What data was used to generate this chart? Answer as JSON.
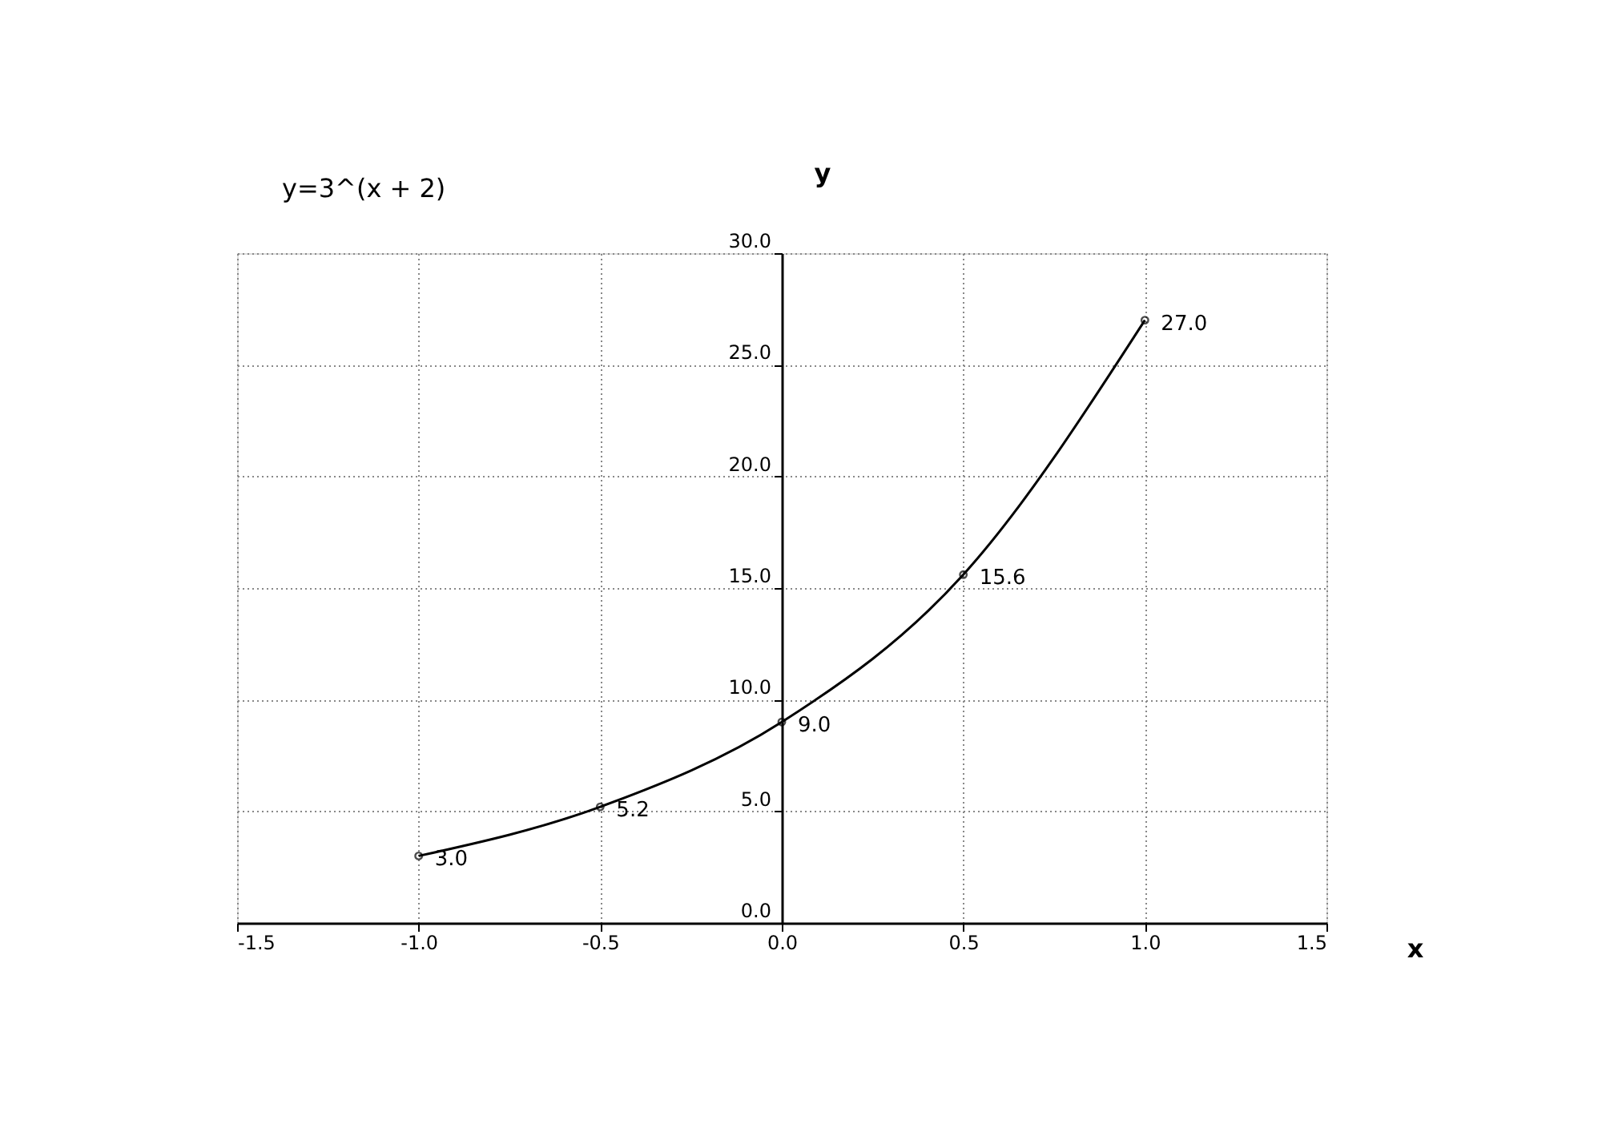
{
  "chart_data": {
    "type": "line",
    "title": "y=3^(x + 2)",
    "xlabel": "x",
    "ylabel": "y",
    "x": [
      -1.0,
      -0.5,
      0.0,
      0.5,
      1.0
    ],
    "series": [
      {
        "color": "#000000",
        "values": [
          3.0,
          5.2,
          9.0,
          15.6,
          27.0
        ],
        "value_labels": [
          "3.0",
          "5.2",
          "9.0",
          "15.6",
          "27.0"
        ]
      }
    ],
    "marker": "circle",
    "line_style": "solid",
    "grid": true,
    "xlim": [
      -1.5,
      1.5
    ],
    "xticks": [
      {
        "value": -1.5,
        "label": "-1.5"
      },
      {
        "value": -1.0,
        "label": "-1.0"
      },
      {
        "value": -0.5,
        "label": "-0.5"
      },
      {
        "value": 0.0,
        "label": "0.0"
      },
      {
        "value": 0.5,
        "label": "0.5"
      },
      {
        "value": 1.0,
        "label": "1.0"
      },
      {
        "value": 1.5,
        "label": "1.5"
      }
    ],
    "ylim": [
      0,
      30
    ],
    "yticks": [
      {
        "value": 0,
        "label": "0.0"
      },
      {
        "value": 5,
        "label": "5.0"
      },
      {
        "value": 10,
        "label": "10.0"
      },
      {
        "value": 15,
        "label": "15.0"
      },
      {
        "value": 20,
        "label": "20.0"
      },
      {
        "value": 25,
        "label": "25.0"
      },
      {
        "value": 30,
        "label": "30.0"
      }
    ]
  }
}
